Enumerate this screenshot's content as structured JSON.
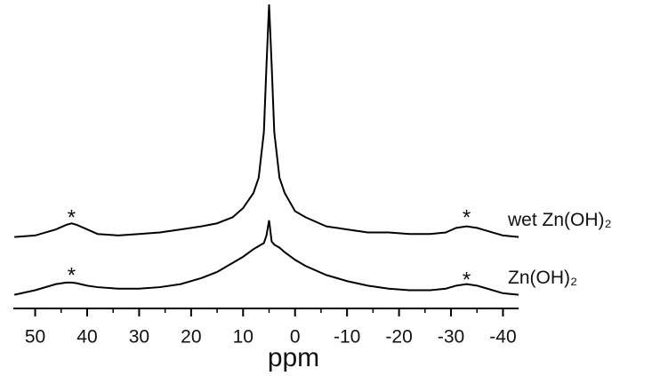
{
  "chart_data": {
    "type": "line",
    "x_label": "ppm",
    "xlim": [
      54.2,
      -43
    ],
    "ylim": [
      0,
      100
    ],
    "xticks": [
      50,
      40,
      30,
      20,
      10,
      0,
      -10,
      -20,
      -30,
      -40
    ],
    "xminor_ticks": [
      45,
      35,
      25,
      15,
      5,
      -5,
      -15,
      -25,
      -35
    ],
    "x": [
      54,
      50,
      46,
      44,
      43,
      42,
      40,
      38,
      34,
      30,
      26,
      22,
      18,
      15,
      12,
      10,
      8,
      7,
      6,
      5.5,
      5,
      4.5,
      4,
      3,
      2,
      0,
      -2,
      -6,
      -10,
      -14,
      -18,
      -22,
      -26,
      -29,
      -31,
      -33,
      -35,
      -37,
      -40,
      -43
    ],
    "series": [
      {
        "name": "wet Zn(OH)₂",
        "color": "#000000",
        "values": [
          23.5,
          24,
          26,
          27.5,
          28,
          27.5,
          26,
          24.5,
          24,
          24.5,
          25,
          26,
          27,
          28,
          30,
          33,
          38,
          43,
          58,
          80,
          100,
          80,
          58,
          43,
          38,
          32,
          30,
          27,
          26,
          25,
          25,
          24.5,
          24.5,
          25,
          26.5,
          27,
          26.5,
          25.5,
          24,
          23.5
        ]
      },
      {
        "name": "Zn(OH)₂",
        "color": "#000000",
        "values": [
          4.5,
          6,
          8,
          8.5,
          8.5,
          8.3,
          7.5,
          7,
          6.5,
          6.5,
          7,
          8,
          10,
          12,
          15,
          17,
          19.5,
          20.5,
          21.5,
          24,
          29,
          22,
          21,
          20,
          18.5,
          16,
          14,
          11,
          9,
          7.5,
          6.5,
          6,
          6,
          6.5,
          7.5,
          8,
          7.5,
          6.5,
          5,
          4.5
        ]
      }
    ],
    "annotations": [
      {
        "text": "*",
        "x": 43,
        "y": 31
      },
      {
        "text": "*",
        "x": -33,
        "y": 31
      },
      {
        "text": "*",
        "x": 43,
        "y": 12
      },
      {
        "text": "*",
        "x": -33,
        "y": 10.5
      }
    ]
  }
}
